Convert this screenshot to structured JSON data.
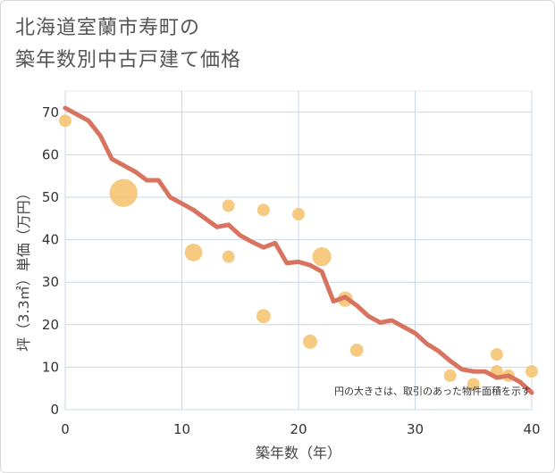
{
  "title": {
    "line1": "北海道室蘭市寿町の",
    "line2": "築年数別中古戸建て価格"
  },
  "chart_data": {
    "type": "scatter",
    "xlabel": "築年数（年）",
    "ylabel": "坪（3.3㎡）単価（万円）",
    "xlim": [
      0,
      40
    ],
    "ylim": [
      0,
      75
    ],
    "x_ticks": [
      0,
      10,
      20,
      30,
      40
    ],
    "y_ticks": [
      0,
      10,
      20,
      30,
      40,
      50,
      60,
      70
    ],
    "grid": true,
    "note": "円の大きさは、取引のあった物件面積を示す",
    "colors": {
      "trend": "#d7735f",
      "bubble": "#f5c26b"
    },
    "bubbles": [
      {
        "x": 0,
        "y": 68,
        "size": 1
      },
      {
        "x": 5,
        "y": 51,
        "size": 5
      },
      {
        "x": 11,
        "y": 37,
        "size": 2
      },
      {
        "x": 14,
        "y": 48,
        "size": 1
      },
      {
        "x": 14,
        "y": 36,
        "size": 1
      },
      {
        "x": 17,
        "y": 47,
        "size": 1
      },
      {
        "x": 17,
        "y": 22,
        "size": 1.3
      },
      {
        "x": 20,
        "y": 46,
        "size": 1
      },
      {
        "x": 21,
        "y": 16,
        "size": 1.3
      },
      {
        "x": 22,
        "y": 36,
        "size": 2.3
      },
      {
        "x": 24,
        "y": 26,
        "size": 1.5
      },
      {
        "x": 25,
        "y": 14,
        "size": 1.1
      },
      {
        "x": 33,
        "y": 8,
        "size": 1
      },
      {
        "x": 35,
        "y": 6,
        "size": 1
      },
      {
        "x": 37,
        "y": 13,
        "size": 1
      },
      {
        "x": 37,
        "y": 9,
        "size": 1
      },
      {
        "x": 38,
        "y": 8,
        "size": 1
      },
      {
        "x": 40,
        "y": 9,
        "size": 1
      }
    ],
    "trend": {
      "x": [
        0,
        1,
        2,
        3,
        4,
        5,
        6,
        7,
        8,
        9,
        10,
        11,
        12,
        13,
        14,
        15,
        16,
        17,
        18,
        19,
        20,
        21,
        22,
        23,
        24,
        25,
        26,
        27,
        28,
        29,
        30,
        31,
        32,
        33,
        34,
        35,
        36,
        37,
        38,
        39,
        40
      ],
      "y": [
        71,
        69.5,
        68,
        64.5,
        59,
        57.5,
        56,
        54,
        54,
        50,
        48.5,
        47,
        45,
        43,
        43.5,
        41,
        39.5,
        38.2,
        39.2,
        34.5,
        34.8,
        34,
        32.5,
        25.5,
        26.5,
        24.5,
        22,
        20.5,
        21,
        19.5,
        18,
        15.5,
        13.8,
        11.5,
        9.5,
        9,
        9,
        7.5,
        8,
        6.5,
        4
      ]
    }
  }
}
